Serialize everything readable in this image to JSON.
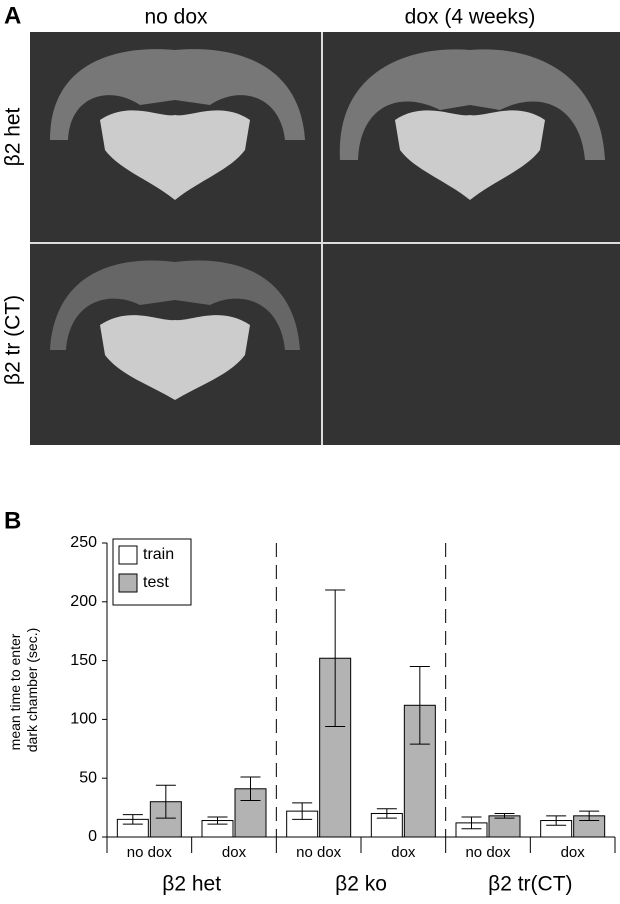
{
  "panel_a": {
    "label": "A",
    "columns": [
      "no dox",
      "dox (4 weeks)"
    ],
    "rows": [
      "β2 het",
      "β2 tr (CT)"
    ]
  },
  "chart_data": {
    "type": "bar",
    "label": "B",
    "ylabel": [
      "mean time to enter",
      "dark chamber (sec.)"
    ],
    "categories": [
      "no dox",
      "dox",
      "no dox",
      "dox",
      "no dox",
      "dox"
    ],
    "groups": [
      "β2 het",
      "β2 ko",
      "β2 tr(CT)"
    ],
    "series": [
      {
        "name": "train",
        "color": "#ffffff",
        "values": [
          15,
          14,
          22,
          20,
          12,
          14
        ],
        "errors": [
          4,
          3,
          7,
          4,
          5,
          4
        ]
      },
      {
        "name": "test",
        "color": "#b3b3b3",
        "values": [
          30,
          41,
          152,
          112,
          18,
          18
        ],
        "errors": [
          14,
          10,
          58,
          33,
          2,
          4
        ]
      }
    ],
    "ylim": [
      0,
      250
    ],
    "yticks": [
      0,
      50,
      100,
      150,
      200,
      250
    ],
    "legend": "upper left"
  }
}
